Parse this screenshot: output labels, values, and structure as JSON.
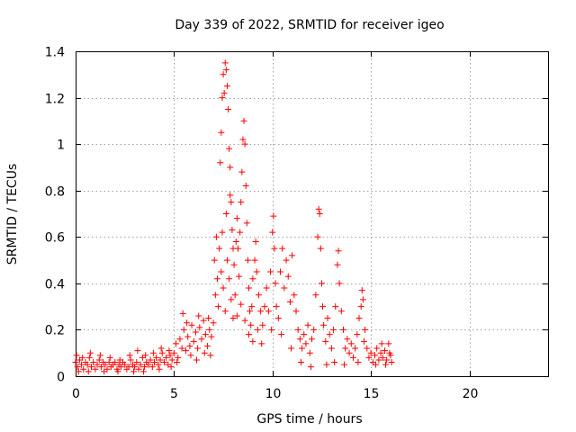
{
  "chart_data": {
    "type": "scatter",
    "title": "Day 339 of 2022, SRMTID for receiver igeo",
    "xlabel": "GPS time / hours",
    "ylabel": "SRMTID / TECUs",
    "xlim": [
      0,
      24
    ],
    "ylim": [
      0,
      1.4
    ],
    "x_ticks": [
      0,
      5,
      10,
      15,
      20
    ],
    "x_tick_labels": [
      "0",
      "5",
      "10",
      "15",
      "20"
    ],
    "y_ticks": [
      0,
      0.2,
      0.4,
      0.6,
      0.8,
      1,
      1.2,
      1.4
    ],
    "y_tick_labels": [
      "0",
      "0.2",
      "0.4",
      "0.6",
      "0.8",
      "1",
      "1.2",
      "1.4"
    ],
    "grid": true,
    "marker": "plus",
    "color": "#ff0000",
    "series": [
      {
        "name": "SRMTID",
        "points": [
          [
            0.0,
            0.06
          ],
          [
            0.1,
            0.04
          ],
          [
            0.2,
            0.07
          ],
          [
            0.3,
            0.05
          ],
          [
            0.4,
            0.03
          ],
          [
            0.5,
            0.06
          ],
          [
            0.6,
            0.05
          ],
          [
            0.7,
            0.08
          ],
          [
            0.8,
            0.04
          ],
          [
            0.9,
            0.06
          ],
          [
            1.0,
            0.03
          ],
          [
            1.1,
            0.05
          ],
          [
            1.2,
            0.07
          ],
          [
            1.3,
            0.04
          ],
          [
            1.4,
            0.06
          ],
          [
            1.5,
            0.05
          ],
          [
            1.6,
            0.03
          ],
          [
            1.7,
            0.06
          ],
          [
            1.8,
            0.04
          ],
          [
            1.9,
            0.05
          ],
          [
            2.0,
            0.06
          ],
          [
            2.1,
            0.03
          ],
          [
            2.2,
            0.05
          ],
          [
            2.3,
            0.04
          ],
          [
            2.4,
            0.06
          ],
          [
            2.5,
            0.05
          ],
          [
            2.6,
            0.03
          ],
          [
            2.7,
            0.04
          ],
          [
            2.8,
            0.07
          ],
          [
            2.9,
            0.05
          ],
          [
            3.0,
            0.04
          ],
          [
            3.1,
            0.06
          ],
          [
            3.2,
            0.03
          ],
          [
            3.3,
            0.05
          ],
          [
            3.4,
            0.08
          ],
          [
            3.5,
            0.04
          ],
          [
            3.6,
            0.06
          ],
          [
            3.7,
            0.05
          ],
          [
            3.8,
            0.07
          ],
          [
            3.9,
            0.04
          ],
          [
            4.0,
            0.06
          ],
          [
            4.1,
            0.08
          ],
          [
            4.2,
            0.05
          ],
          [
            4.3,
            0.07
          ],
          [
            4.4,
            0.1
          ],
          [
            4.5,
            0.06
          ],
          [
            4.6,
            0.08
          ],
          [
            4.7,
            0.05
          ],
          [
            4.8,
            0.09
          ],
          [
            4.9,
            0.07
          ],
          [
            0.05,
            0.09
          ],
          [
            0.35,
            0.08
          ],
          [
            0.75,
            0.1
          ],
          [
            1.25,
            0.09
          ],
          [
            1.75,
            0.08
          ],
          [
            2.25,
            0.07
          ],
          [
            2.75,
            0.09
          ],
          [
            3.15,
            0.11
          ],
          [
            3.55,
            0.09
          ],
          [
            3.95,
            0.1
          ],
          [
            4.35,
            0.12
          ],
          [
            4.75,
            0.11
          ],
          [
            0.15,
            0.02
          ],
          [
            0.65,
            0.02
          ],
          [
            1.45,
            0.02
          ],
          [
            2.15,
            0.02
          ],
          [
            2.95,
            0.02
          ],
          [
            3.45,
            0.02
          ],
          [
            4.25,
            0.03
          ],
          [
            4.85,
            0.04
          ],
          [
            5.0,
            0.1
          ],
          [
            5.1,
            0.14
          ],
          [
            5.2,
            0.08
          ],
          [
            5.3,
            0.16
          ],
          [
            5.4,
            0.12
          ],
          [
            5.5,
            0.2
          ],
          [
            5.6,
            0.11
          ],
          [
            5.7,
            0.17
          ],
          [
            5.8,
            0.13
          ],
          [
            5.9,
            0.22
          ],
          [
            6.0,
            0.15
          ],
          [
            6.1,
            0.19
          ],
          [
            6.2,
            0.12
          ],
          [
            6.3,
            0.21
          ],
          [
            6.4,
            0.16
          ],
          [
            6.5,
            0.24
          ],
          [
            6.6,
            0.18
          ],
          [
            6.7,
            0.13
          ],
          [
            6.8,
            0.2
          ],
          [
            6.9,
            0.17
          ],
          [
            5.45,
            0.27
          ],
          [
            5.85,
            0.09
          ],
          [
            6.25,
            0.26
          ],
          [
            6.55,
            0.1
          ],
          [
            6.75,
            0.25
          ],
          [
            5.15,
            0.06
          ],
          [
            5.65,
            0.23
          ],
          [
            6.15,
            0.07
          ],
          [
            6.85,
            0.09
          ],
          [
            7.0,
            0.23
          ],
          [
            7.05,
            0.5
          ],
          [
            7.1,
            0.35
          ],
          [
            7.15,
            0.6
          ],
          [
            7.2,
            0.42
          ],
          [
            7.25,
            0.3
          ],
          [
            7.3,
            0.55
          ],
          [
            7.35,
            0.92
          ],
          [
            7.4,
            1.05
          ],
          [
            7.45,
            1.2
          ],
          [
            7.5,
            1.3
          ],
          [
            7.55,
            1.22
          ],
          [
            7.6,
            1.35
          ],
          [
            7.65,
            1.32
          ],
          [
            7.7,
            1.25
          ],
          [
            7.75,
            1.15
          ],
          [
            7.8,
            0.98
          ],
          [
            7.85,
            0.9
          ],
          [
            7.9,
            0.75
          ],
          [
            7.95,
            0.63
          ],
          [
            8.0,
            0.55
          ],
          [
            7.4,
            0.45
          ],
          [
            7.5,
            0.38
          ],
          [
            7.6,
            0.28
          ],
          [
            7.7,
            0.5
          ],
          [
            7.8,
            0.42
          ],
          [
            7.9,
            0.33
          ],
          [
            8.0,
            0.25
          ],
          [
            7.45,
            0.62
          ],
          [
            7.65,
            0.7
          ],
          [
            7.85,
            0.78
          ],
          [
            8.05,
            0.48
          ],
          [
            8.1,
            0.35
          ],
          [
            8.15,
            0.58
          ],
          [
            8.2,
            0.68
          ],
          [
            8.25,
            0.55
          ],
          [
            8.3,
            0.43
          ],
          [
            8.35,
            0.62
          ],
          [
            8.4,
            0.75
          ],
          [
            8.45,
            0.88
          ],
          [
            8.5,
            1.02
          ],
          [
            8.55,
            1.1
          ],
          [
            8.6,
            1.0
          ],
          [
            8.65,
            0.82
          ],
          [
            8.7,
            0.66
          ],
          [
            8.75,
            0.5
          ],
          [
            8.8,
            0.38
          ],
          [
            8.85,
            0.28
          ],
          [
            8.9,
            0.22
          ],
          [
            8.95,
            0.3
          ],
          [
            9.0,
            0.42
          ],
          [
            8.2,
            0.26
          ],
          [
            8.4,
            0.31
          ],
          [
            8.6,
            0.24
          ],
          [
            8.8,
            0.18
          ],
          [
            9.0,
            0.15
          ],
          [
            9.1,
            0.5
          ],
          [
            9.15,
            0.58
          ],
          [
            9.2,
            0.45
          ],
          [
            9.3,
            0.35
          ],
          [
            9.4,
            0.28
          ],
          [
            9.5,
            0.22
          ],
          [
            9.6,
            0.3
          ],
          [
            9.7,
            0.38
          ],
          [
            9.8,
            0.28
          ],
          [
            9.9,
            0.45
          ],
          [
            10.0,
            0.62
          ],
          [
            10.05,
            0.69
          ],
          [
            10.1,
            0.55
          ],
          [
            10.15,
            0.4
          ],
          [
            10.2,
            0.3
          ],
          [
            10.3,
            0.25
          ],
          [
            10.4,
            0.45
          ],
          [
            10.5,
            0.55
          ],
          [
            10.6,
            0.38
          ],
          [
            10.7,
            0.5
          ],
          [
            10.8,
            0.43
          ],
          [
            10.9,
            0.32
          ],
          [
            11.0,
            0.52
          ],
          [
            11.1,
            0.35
          ],
          [
            11.2,
            0.28
          ],
          [
            11.3,
            0.2
          ],
          [
            11.4,
            0.16
          ],
          [
            11.5,
            0.12
          ],
          [
            11.6,
            0.18
          ],
          [
            11.7,
            0.14
          ],
          [
            11.8,
            0.22
          ],
          [
            11.9,
            0.1
          ],
          [
            12.0,
            0.16
          ],
          [
            12.1,
            0.2
          ],
          [
            12.2,
            0.35
          ],
          [
            12.3,
            0.6
          ],
          [
            12.35,
            0.72
          ],
          [
            12.4,
            0.7
          ],
          [
            12.45,
            0.55
          ],
          [
            12.5,
            0.4
          ],
          [
            12.55,
            0.3
          ],
          [
            12.6,
            0.22
          ],
          [
            12.7,
            0.15
          ],
          [
            12.8,
            0.25
          ],
          [
            12.9,
            0.18
          ],
          [
            13.0,
            0.12
          ],
          [
            13.1,
            0.2
          ],
          [
            13.2,
            0.3
          ],
          [
            13.3,
            0.48
          ],
          [
            13.35,
            0.54
          ],
          [
            13.4,
            0.4
          ],
          [
            13.5,
            0.28
          ],
          [
            13.6,
            0.2
          ],
          [
            13.7,
            0.12
          ],
          [
            13.8,
            0.16
          ],
          [
            13.9,
            0.1
          ],
          [
            14.0,
            0.14
          ],
          [
            14.1,
            0.08
          ],
          [
            14.2,
            0.12
          ],
          [
            14.3,
            0.18
          ],
          [
            14.4,
            0.25
          ],
          [
            14.5,
            0.3
          ],
          [
            14.55,
            0.37
          ],
          [
            14.6,
            0.33
          ],
          [
            14.7,
            0.2
          ],
          [
            14.8,
            0.12
          ],
          [
            14.9,
            0.08
          ],
          [
            15.0,
            0.1
          ],
          [
            15.1,
            0.06
          ],
          [
            15.2,
            0.09
          ],
          [
            15.3,
            0.12
          ],
          [
            15.4,
            0.07
          ],
          [
            15.5,
            0.1
          ],
          [
            15.6,
            0.08
          ],
          [
            15.7,
            0.11
          ],
          [
            15.8,
            0.07
          ],
          [
            15.9,
            0.14
          ],
          [
            16.0,
            0.09
          ],
          [
            16.05,
            0.06
          ],
          [
            15.25,
            0.05
          ],
          [
            15.55,
            0.14
          ],
          [
            15.75,
            0.05
          ],
          [
            15.95,
            0.1
          ],
          [
            14.65,
            0.15
          ],
          [
            14.35,
            0.06
          ],
          [
            12.75,
            0.05
          ],
          [
            13.15,
            0.06
          ],
          [
            13.65,
            0.05
          ],
          [
            11.95,
            0.04
          ],
          [
            11.45,
            0.06
          ],
          [
            10.95,
            0.12
          ],
          [
            10.45,
            0.18
          ],
          [
            9.95,
            0.2
          ],
          [
            9.45,
            0.14
          ],
          [
            9.25,
            0.2
          ]
        ]
      }
    ]
  }
}
